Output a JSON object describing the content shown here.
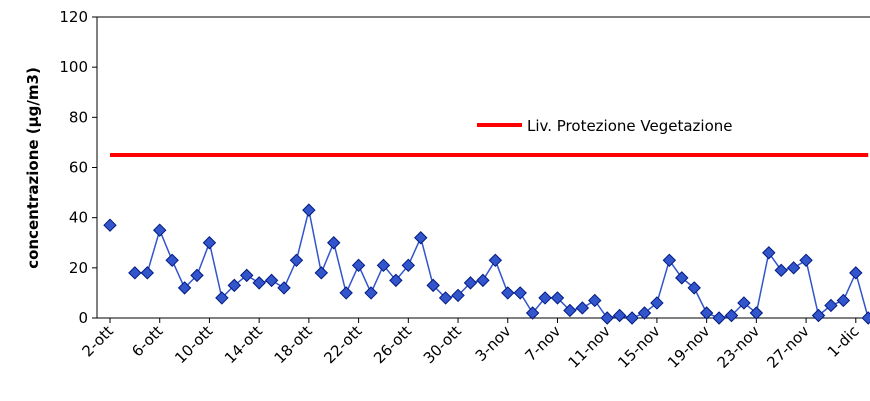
{
  "chart_data": {
    "type": "line",
    "y_label": "concentrazione (µg/m3)",
    "categories": [
      "2-ott",
      null,
      null,
      null,
      "6-ott",
      null,
      null,
      null,
      "10-ott",
      null,
      null,
      null,
      "14-ott",
      null,
      null,
      null,
      "18-ott",
      null,
      null,
      null,
      "22-ott",
      null,
      null,
      null,
      "26-ott",
      null,
      null,
      null,
      "30-ott",
      null,
      null,
      null,
      "3-nov",
      null,
      null,
      null,
      "7-nov",
      null,
      null,
      null,
      "11-nov",
      null,
      null,
      null,
      "15-nov",
      null,
      null,
      null,
      "19-nov",
      null,
      null,
      null,
      "23-nov",
      null,
      null,
      null,
      "27-nov",
      null,
      null,
      null,
      "1-dic",
      null
    ],
    "series": [
      {
        "name": "concentrazione",
        "color": "#3355cc",
        "marker": "diamond",
        "values": [
          37,
          null,
          18,
          18,
          35,
          23,
          12,
          17,
          30,
          8,
          13,
          17,
          14,
          15,
          12,
          23,
          43,
          18,
          30,
          10,
          21,
          10,
          21,
          15,
          21,
          32,
          13,
          8,
          9,
          14,
          15,
          23,
          10,
          10,
          2,
          8,
          8,
          3,
          4,
          7,
          0,
          1,
          0,
          2,
          6,
          23,
          16,
          12,
          2,
          0,
          1,
          6,
          2,
          26,
          19,
          20,
          23,
          1,
          5,
          7,
          18,
          0
        ]
      },
      {
        "name": "Liv. Protezione Vegetazione",
        "color": "#ff0000",
        "marker": "none",
        "values": [
          65,
          65,
          65,
          65,
          65,
          65,
          65,
          65,
          65,
          65,
          65,
          65,
          65,
          65,
          65,
          65,
          65,
          65,
          65,
          65,
          65,
          65,
          65,
          65,
          65,
          65,
          65,
          65,
          65,
          65,
          65,
          65,
          65,
          65,
          65,
          65,
          65,
          65,
          65,
          65,
          65,
          65,
          65,
          65,
          65,
          65,
          65,
          65,
          65,
          65,
          65,
          65,
          65,
          65,
          65,
          65,
          65,
          65,
          65,
          65,
          65,
          65
        ]
      }
    ],
    "ylim": [
      0,
      120
    ],
    "yticks": [
      0,
      20,
      40,
      60,
      80,
      100,
      120
    ],
    "legend": "upper right"
  }
}
